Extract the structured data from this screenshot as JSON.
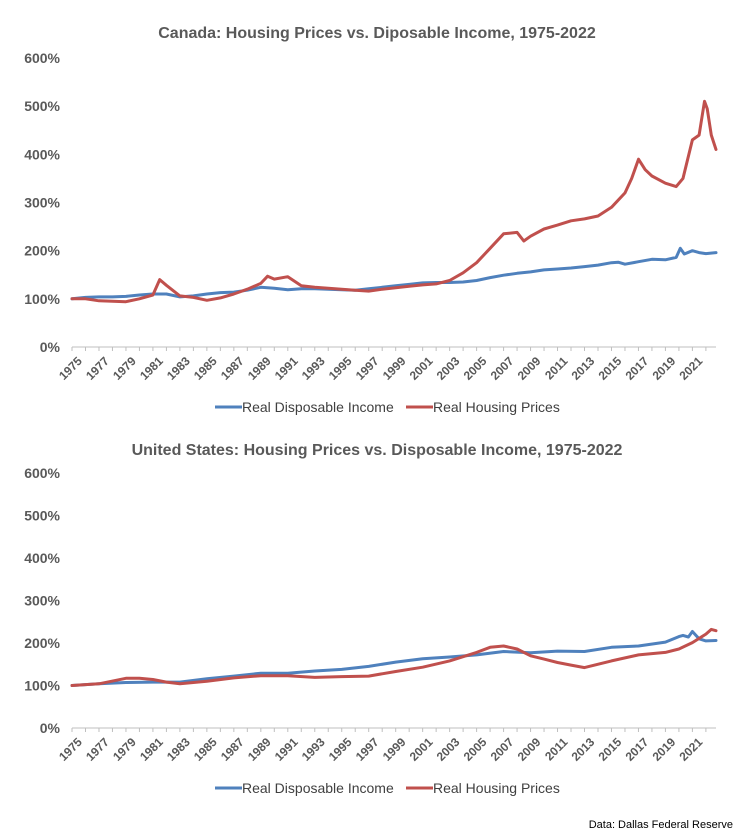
{
  "chart_data": [
    {
      "type": "line",
      "title": "Canada: Housing Prices vs. Diposable Income, 1975-2022",
      "ylim": [
        0,
        600
      ],
      "y_ticks": [
        "0%",
        "100%",
        "200%",
        "300%",
        "400%",
        "500%",
        "600%"
      ],
      "x_range": [
        1975,
        2022.75
      ],
      "x_ticks": [
        "1975",
        "1977",
        "1979",
        "1981",
        "1983",
        "1985",
        "1987",
        "1989",
        "1991",
        "1993",
        "1995",
        "1997",
        "1999",
        "2001",
        "2003",
        "2005",
        "2007",
        "2009",
        "2011",
        "2013",
        "2015",
        "2017",
        "2019",
        "2021"
      ],
      "grid": false,
      "legend_position": "bottom",
      "series": [
        {
          "name": "Real Disposable Income",
          "color": "#4F81BD",
          "x": [
            1975,
            1976,
            1977,
            1978,
            1979,
            1980,
            1981,
            1982,
            1983,
            1984,
            1985,
            1986,
            1987,
            1988,
            1989,
            1990,
            1991,
            1992,
            1993,
            1994,
            1995,
            1996,
            1997,
            1998,
            1999,
            2000,
            2001,
            2002,
            2003,
            2004,
            2005,
            2006,
            2007,
            2008,
            2009,
            2010,
            2011,
            2012,
            2013,
            2014,
            2015,
            2015.5,
            2016,
            2017,
            2018,
            2019,
            2019.8,
            2020.1,
            2020.4,
            2021,
            2021.5,
            2022,
            2022.75
          ],
          "values": [
            100,
            103,
            104,
            104,
            105,
            108,
            110,
            110,
            104,
            106,
            110,
            113,
            114,
            118,
            124,
            122,
            119,
            121,
            121,
            120,
            119,
            118,
            121,
            124,
            127,
            130,
            133,
            134,
            134,
            135,
            138,
            144,
            149,
            153,
            156,
            160,
            162,
            164,
            167,
            170,
            175,
            176,
            172,
            177,
            182,
            181,
            186,
            205,
            193,
            200,
            196,
            194,
            196
          ]
        },
        {
          "name": "Real Housing Prices",
          "color": "#C0504D",
          "x": [
            1975,
            1976,
            1977,
            1978,
            1979,
            1980,
            1981,
            1981.5,
            1982,
            1983,
            1984,
            1985,
            1986,
            1987,
            1988,
            1989,
            1989.5,
            1990,
            1991,
            1992,
            1993,
            1994,
            1995,
            1996,
            1997,
            1998,
            1999,
            2000,
            2001,
            2002,
            2003,
            2004,
            2005,
            2006,
            2007,
            2008,
            2008.5,
            2009,
            2010,
            2011,
            2012,
            2013,
            2014,
            2015,
            2016,
            2016.5,
            2017,
            2017.5,
            2018,
            2019,
            2019.8,
            2020.3,
            2021,
            2021.5,
            2021.9,
            2022.1,
            2022.4,
            2022.75
          ],
          "values": [
            100,
            100,
            96,
            95,
            94,
            100,
            108,
            140,
            128,
            106,
            103,
            97,
            102,
            110,
            120,
            132,
            147,
            141,
            146,
            127,
            124,
            122,
            120,
            118,
            116,
            120,
            123,
            126,
            129,
            131,
            138,
            154,
            175,
            205,
            235,
            238,
            220,
            230,
            245,
            253,
            262,
            266,
            272,
            290,
            320,
            350,
            390,
            368,
            355,
            340,
            333,
            350,
            430,
            440,
            510,
            495,
            440,
            410
          ]
        }
      ]
    },
    {
      "type": "line",
      "title": "United States: Housing Prices vs. Disposable Income, 1975-2022",
      "ylim": [
        0,
        600
      ],
      "y_ticks": [
        "0%",
        "100%",
        "200%",
        "300%",
        "400%",
        "500%",
        "600%"
      ],
      "x_range": [
        1975,
        2022.75
      ],
      "x_ticks": [
        "1975",
        "1977",
        "1979",
        "1981",
        "1983",
        "1985",
        "1987",
        "1989",
        "1991",
        "1993",
        "1995",
        "1997",
        "1999",
        "2001",
        "2003",
        "2005",
        "2007",
        "2009",
        "2011",
        "2013",
        "2015",
        "2017",
        "2019",
        "2021"
      ],
      "grid": false,
      "legend_position": "bottom",
      "series": [
        {
          "name": "Real Disposable Income",
          "color": "#4F81BD",
          "x": [
            1975,
            1977,
            1979,
            1981,
            1983,
            1985,
            1987,
            1989,
            1991,
            1993,
            1995,
            1997,
            1999,
            2001,
            2003,
            2005,
            2007,
            2009,
            2011,
            2013,
            2015,
            2017,
            2019,
            2020,
            2020.3,
            2020.7,
            2021,
            2021.5,
            2022,
            2022.75
          ],
          "values": [
            100,
            104,
            107,
            108,
            108,
            116,
            122,
            129,
            129,
            134,
            138,
            145,
            155,
            163,
            167,
            172,
            180,
            177,
            181,
            180,
            190,
            193,
            202,
            215,
            218,
            214,
            227,
            210,
            205,
            206
          ]
        },
        {
          "name": "Real Housing Prices",
          "color": "#C0504D",
          "x": [
            1975,
            1977,
            1979,
            1980,
            1981,
            1982,
            1983,
            1985,
            1987,
            1989,
            1991,
            1993,
            1995,
            1997,
            1999,
            2001,
            2003,
            2005,
            2006,
            2007,
            2008,
            2009,
            2010,
            2011,
            2012,
            2013,
            2015,
            2017,
            2019,
            2020,
            2021,
            2022,
            2022.4,
            2022.75
          ],
          "values": [
            100,
            104,
            117,
            117,
            114,
            108,
            104,
            110,
            118,
            123,
            123,
            119,
            121,
            122,
            133,
            143,
            158,
            178,
            190,
            193,
            186,
            170,
            162,
            154,
            148,
            142,
            158,
            172,
            178,
            186,
            201,
            221,
            232,
            229
          ]
        }
      ]
    }
  ],
  "source_note": "Data: Dallas Federal Reserve"
}
